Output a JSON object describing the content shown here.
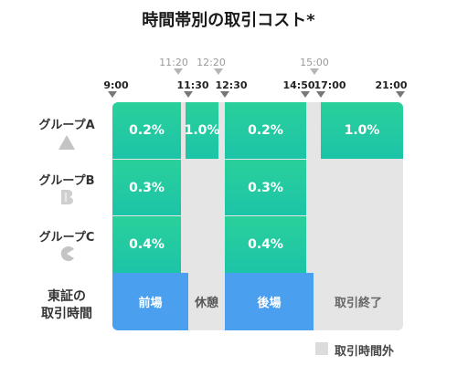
{
  "title": "時間帯別の取引コスト*",
  "times_main": [
    "9:00",
    "11:30",
    "12:30",
    "14:50",
    "17:00",
    "21:00"
  ],
  "times_secondary": [
    "11:20",
    "12:20",
    "15:00"
  ],
  "groups": [
    {
      "label": "グループA",
      "icon": "triangle-icon",
      "values": [
        "0.2%",
        "1.0%",
        "0.2%",
        "1.0%"
      ]
    },
    {
      "label": "グループB",
      "icon": "b-logo-icon",
      "values": [
        "0.3%",
        "0.3%"
      ]
    },
    {
      "label": "グループC",
      "icon": "pacman-icon",
      "values": [
        "0.4%",
        "0.4%"
      ]
    }
  ],
  "tse": {
    "label_line1": "東証の",
    "label_line2": "取引時間",
    "sessions": [
      "前場",
      "休憩",
      "後場",
      "取引終了"
    ]
  },
  "legend": {
    "label": "取引時間外"
  },
  "colors": {
    "green": "#22cc9e",
    "blue": "#4aa0ee",
    "gray": "#e5e5e5"
  }
}
